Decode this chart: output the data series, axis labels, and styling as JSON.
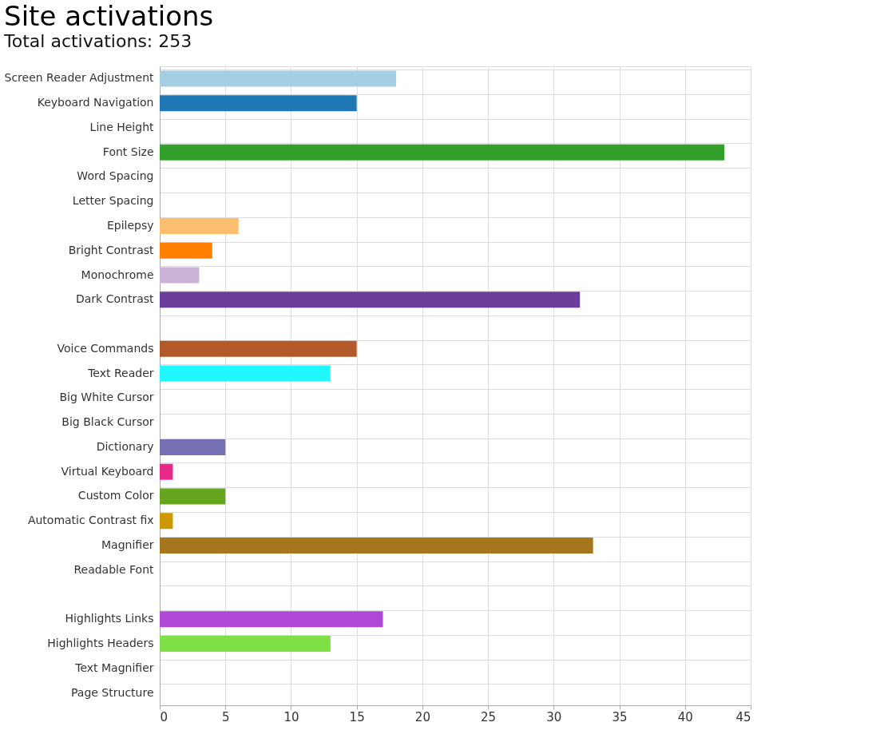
{
  "chart_data": {
    "type": "bar",
    "orientation": "horizontal",
    "title": "Site activations",
    "subtitle": "Total activations: 253",
    "categories": [
      "Screen Reader Adjustment",
      "Keyboard Navigation",
      "Line Height",
      "Font Size",
      "Word Spacing",
      "Letter Spacing",
      "Epilepsy",
      "Bright Contrast",
      "Monochrome",
      "Dark Contrast",
      null,
      "Voice Commands",
      "Text Reader",
      "Big White Cursor",
      "Big Black Cursor",
      "Dictionary",
      "Virtual Keyboard",
      "Custom Color",
      "Automatic Contrast fix",
      "Magnifier",
      "Readable Font",
      null,
      "Highlights Links",
      "Highlights Headers",
      "Text Magnifier",
      "Page Structure"
    ],
    "values": [
      18,
      15,
      0,
      43,
      0,
      0,
      6,
      4,
      3,
      32,
      null,
      15,
      13,
      0,
      0,
      5,
      1,
      5,
      1,
      33,
      0,
      null,
      17,
      13,
      0,
      0
    ],
    "colors": [
      "#a6cee3",
      "#1f78b4",
      "#cccccc",
      "#33a02c",
      "#cccccc",
      "#cccccc",
      "#fdbf6f",
      "#ff7f00",
      "#cab2d6",
      "#6a3d9a",
      "#cccccc",
      "#b15928",
      "#1ff8ff",
      "#cccccc",
      "#cccccc",
      "#7570b3",
      "#e7298a",
      "#66a61e",
      "#cc9900",
      "#a6761d",
      "#cccccc",
      "#cccccc",
      "#b048d6",
      "#7ee046",
      "#cccccc",
      "#cccccc"
    ],
    "xlim": [
      0,
      45
    ],
    "xticks": [
      0,
      5,
      10,
      15,
      20,
      25,
      30,
      35,
      40,
      45
    ],
    "grid": true,
    "legend": false
  }
}
